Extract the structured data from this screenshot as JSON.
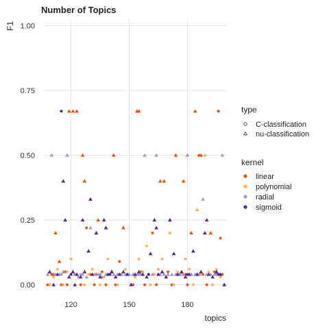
{
  "chart_data": {
    "type": "scatter",
    "title": "Number of Topics",
    "xlabel": "topics",
    "ylabel": "F1",
    "xlim": [
      106,
      200
    ],
    "ylim": [
      -0.025,
      1.025
    ],
    "x_ticks": [
      120,
      150,
      180
    ],
    "y_ticks": [
      0.0,
      0.25,
      0.5,
      0.75,
      1.0
    ],
    "y_tick_labels": [
      "0.00",
      "0.25",
      "0.50",
      "0.75",
      "1.00"
    ],
    "grid": true,
    "legend_position": "right",
    "legend": {
      "shape": {
        "title": "type",
        "entries": [
          {
            "label": "C-classification",
            "marker": "circle"
          },
          {
            "label": "nu-classification",
            "marker": "triangle"
          }
        ]
      },
      "color": {
        "title": "kernel",
        "entries": [
          {
            "label": "linear",
            "color": "#e6550d"
          },
          {
            "label": "polynomial",
            "color": "#fdae6b"
          },
          {
            "label": "radial",
            "color": "#9e9ac8"
          },
          {
            "label": "sigmoid",
            "color": "#54278f"
          }
        ]
      }
    },
    "series": [
      {
        "name": "linear",
        "points": [
          [
            108,
            0.0,
            "c"
          ],
          [
            110,
            0.04,
            "c"
          ],
          [
            112,
            0.2,
            "t"
          ],
          [
            114,
            0.09,
            "t"
          ],
          [
            115,
            0.0,
            "c"
          ],
          [
            117,
            0.05,
            "c"
          ],
          [
            118,
            0.0,
            "c"
          ],
          [
            119,
            0.67,
            "t"
          ],
          [
            121,
            0.67,
            "t"
          ],
          [
            123,
            0.67,
            "t"
          ],
          [
            122,
            0.04,
            "c"
          ],
          [
            125,
            0.0,
            "c"
          ],
          [
            126,
            0.5,
            "t"
          ],
          [
            127,
            0.4,
            "t"
          ],
          [
            128,
            0.22,
            "c"
          ],
          [
            130,
            0.04,
            "c"
          ],
          [
            132,
            0.0,
            "c"
          ],
          [
            134,
            0.25,
            "t"
          ],
          [
            136,
            0.05,
            "c"
          ],
          [
            138,
            0.0,
            "c"
          ],
          [
            140,
            0.04,
            "c"
          ],
          [
            142,
            0.5,
            "t"
          ],
          [
            143,
            0.0,
            "c"
          ],
          [
            145,
            0.09,
            "c"
          ],
          [
            147,
            0.22,
            "t"
          ],
          [
            149,
            0.04,
            "c"
          ],
          [
            152,
            0.0,
            "c"
          ],
          [
            154,
            0.67,
            "t"
          ],
          [
            155,
            0.67,
            "t"
          ],
          [
            156,
            0.05,
            "c"
          ],
          [
            158,
            0.0,
            "c"
          ],
          [
            160,
            0.04,
            "c"
          ],
          [
            162,
            0.2,
            "c"
          ],
          [
            164,
            0.0,
            "c"
          ],
          [
            166,
            0.4,
            "t"
          ],
          [
            168,
            0.4,
            "t"
          ],
          [
            170,
            0.05,
            "c"
          ],
          [
            172,
            0.0,
            "c"
          ],
          [
            174,
            0.5,
            "t"
          ],
          [
            176,
            0.04,
            "c"
          ],
          [
            178,
            0.4,
            "t"
          ],
          [
            180,
            0.0,
            "c"
          ],
          [
            182,
            0.2,
            "t"
          ],
          [
            184,
            0.67,
            "t"
          ],
          [
            186,
            0.5,
            "t"
          ],
          [
            187,
            0.5,
            "t"
          ],
          [
            188,
            0.04,
            "c"
          ],
          [
            190,
            0.0,
            "c"
          ],
          [
            192,
            0.2,
            "t"
          ],
          [
            194,
            0.05,
            "c"
          ],
          [
            196,
            0.67,
            "c"
          ],
          [
            197,
            0.18,
            "c"
          ],
          [
            198,
            0.04,
            "c"
          ],
          [
            111,
            0.04,
            "t"
          ],
          [
            133,
            0.04,
            "t"
          ],
          [
            157,
            0.04,
            "t"
          ],
          [
            179,
            0.04,
            "t"
          ],
          [
            195,
            0.04,
            "t"
          ]
        ]
      },
      {
        "name": "polynomial",
        "points": [
          [
            109,
            0.0,
            "c"
          ],
          [
            111,
            0.03,
            "c"
          ],
          [
            113,
            0.06,
            "c"
          ],
          [
            116,
            0.0,
            "c"
          ],
          [
            118,
            0.05,
            "c"
          ],
          [
            120,
            0.1,
            "c"
          ],
          [
            124,
            0.03,
            "c"
          ],
          [
            127,
            0.0,
            "c"
          ],
          [
            129,
            0.04,
            "c"
          ],
          [
            131,
            0.06,
            "c"
          ],
          [
            135,
            0.0,
            "c"
          ],
          [
            137,
            0.03,
            "c"
          ],
          [
            139,
            0.1,
            "c"
          ],
          [
            141,
            0.05,
            "c"
          ],
          [
            144,
            0.0,
            "c"
          ],
          [
            146,
            0.04,
            "c"
          ],
          [
            148,
            0.06,
            "c"
          ],
          [
            151,
            0.0,
            "c"
          ],
          [
            153,
            0.03,
            "c"
          ],
          [
            155,
            0.1,
            "c"
          ],
          [
            157,
            0.05,
            "c"
          ],
          [
            159,
            0.15,
            "c"
          ],
          [
            161,
            0.0,
            "c"
          ],
          [
            163,
            0.04,
            "c"
          ],
          [
            165,
            0.06,
            "c"
          ],
          [
            167,
            0.1,
            "c"
          ],
          [
            169,
            0.03,
            "c"
          ],
          [
            171,
            0.2,
            "c"
          ],
          [
            173,
            0.0,
            "c"
          ],
          [
            175,
            0.05,
            "c"
          ],
          [
            177,
            0.04,
            "c"
          ],
          [
            179,
            0.1,
            "c"
          ],
          [
            181,
            0.06,
            "c"
          ],
          [
            183,
            0.0,
            "c"
          ],
          [
            185,
            0.29,
            "t"
          ],
          [
            187,
            0.04,
            "c"
          ],
          [
            189,
            0.5,
            "t"
          ],
          [
            191,
            0.05,
            "c"
          ],
          [
            193,
            0.0,
            "c"
          ],
          [
            195,
            0.06,
            "c"
          ],
          [
            197,
            0.03,
            "c"
          ],
          [
            199,
            0.0,
            "c"
          ]
        ]
      },
      {
        "name": "radial",
        "points": [
          [
            108,
            0.04,
            "t"
          ],
          [
            110,
            0.5,
            "t"
          ],
          [
            112,
            0.04,
            "t"
          ],
          [
            114,
            0.04,
            "t"
          ],
          [
            116,
            0.05,
            "t"
          ],
          [
            118,
            0.5,
            "t"
          ],
          [
            120,
            0.04,
            "t"
          ],
          [
            122,
            0.04,
            "t"
          ],
          [
            124,
            0.03,
            "t"
          ],
          [
            126,
            0.04,
            "t"
          ],
          [
            128,
            0.03,
            "t"
          ],
          [
            130,
            0.22,
            "t"
          ],
          [
            132,
            0.04,
            "t"
          ],
          [
            134,
            0.04,
            "t"
          ],
          [
            136,
            0.03,
            "t"
          ],
          [
            138,
            0.04,
            "t"
          ],
          [
            140,
            0.04,
            "t"
          ],
          [
            142,
            0.04,
            "t"
          ],
          [
            144,
            0.04,
            "t"
          ],
          [
            146,
            0.04,
            "t"
          ],
          [
            148,
            0.04,
            "t"
          ],
          [
            150,
            0.04,
            "t"
          ],
          [
            152,
            0.04,
            "t"
          ],
          [
            154,
            0.04,
            "t"
          ],
          [
            156,
            0.04,
            "t"
          ],
          [
            158,
            0.5,
            "t"
          ],
          [
            160,
            0.04,
            "t"
          ],
          [
            162,
            0.04,
            "t"
          ],
          [
            164,
            0.5,
            "t"
          ],
          [
            166,
            0.04,
            "t"
          ],
          [
            168,
            0.04,
            "t"
          ],
          [
            170,
            0.04,
            "t"
          ],
          [
            172,
            0.04,
            "t"
          ],
          [
            174,
            0.04,
            "t"
          ],
          [
            176,
            0.04,
            "t"
          ],
          [
            178,
            0.04,
            "t"
          ],
          [
            180,
            0.5,
            "t"
          ],
          [
            182,
            0.04,
            "t"
          ],
          [
            184,
            0.04,
            "t"
          ],
          [
            186,
            0.04,
            "t"
          ],
          [
            188,
            0.33,
            "t"
          ],
          [
            190,
            0.04,
            "t"
          ],
          [
            192,
            0.04,
            "t"
          ],
          [
            194,
            0.04,
            "t"
          ],
          [
            196,
            0.04,
            "t"
          ],
          [
            198,
            0.5,
            "t"
          ],
          [
            115,
            0.04,
            "c"
          ],
          [
            125,
            0.04,
            "c"
          ],
          [
            135,
            0.04,
            "c"
          ],
          [
            145,
            0.04,
            "c"
          ],
          [
            155,
            0.04,
            "c"
          ],
          [
            165,
            0.04,
            "c"
          ],
          [
            175,
            0.04,
            "c"
          ],
          [
            185,
            0.04,
            "c"
          ],
          [
            195,
            0.04,
            "c"
          ]
        ]
      },
      {
        "name": "sigmoid",
        "points": [
          [
            109,
            0.05,
            "t"
          ],
          [
            111,
            0.0,
            "t"
          ],
          [
            113,
            0.04,
            "t"
          ],
          [
            115,
            0.67,
            "c"
          ],
          [
            116,
            0.4,
            "t"
          ],
          [
            117,
            0.25,
            "t"
          ],
          [
            119,
            0.03,
            "t"
          ],
          [
            121,
            0.05,
            "t"
          ],
          [
            122,
            0.0,
            "t"
          ],
          [
            123,
            0.04,
            "t"
          ],
          [
            125,
            0.03,
            "t"
          ],
          [
            126,
            0.25,
            "t"
          ],
          [
            127,
            0.05,
            "t"
          ],
          [
            129,
            0.13,
            "t"
          ],
          [
            130,
            0.33,
            "t"
          ],
          [
            131,
            0.04,
            "t"
          ],
          [
            133,
            0.2,
            "t"
          ],
          [
            135,
            0.03,
            "t"
          ],
          [
            137,
            0.25,
            "t"
          ],
          [
            138,
            0.22,
            "t"
          ],
          [
            139,
            0.04,
            "t"
          ],
          [
            141,
            0.05,
            "t"
          ],
          [
            143,
            0.03,
            "t"
          ],
          [
            145,
            0.04,
            "t"
          ],
          [
            147,
            0.05,
            "t"
          ],
          [
            149,
            0.04,
            "t"
          ],
          [
            151,
            0.0,
            "t"
          ],
          [
            153,
            0.04,
            "t"
          ],
          [
            155,
            0.05,
            "t"
          ],
          [
            157,
            0.04,
            "t"
          ],
          [
            159,
            0.03,
            "t"
          ],
          [
            161,
            0.12,
            "t"
          ],
          [
            163,
            0.25,
            "t"
          ],
          [
            164,
            0.22,
            "t"
          ],
          [
            165,
            0.04,
            "t"
          ],
          [
            167,
            0.05,
            "t"
          ],
          [
            169,
            0.03,
            "t"
          ],
          [
            171,
            0.25,
            "t"
          ],
          [
            173,
            0.12,
            "t"
          ],
          [
            175,
            0.04,
            "t"
          ],
          [
            177,
            0.05,
            "t"
          ],
          [
            179,
            0.03,
            "t"
          ],
          [
            181,
            0.04,
            "t"
          ],
          [
            183,
            0.13,
            "t"
          ],
          [
            185,
            0.04,
            "t"
          ],
          [
            187,
            0.05,
            "t"
          ],
          [
            189,
            0.2,
            "t"
          ],
          [
            190,
            0.25,
            "t"
          ],
          [
            191,
            0.04,
            "t"
          ],
          [
            193,
            0.03,
            "t"
          ],
          [
            195,
            0.05,
            "t"
          ],
          [
            197,
            0.04,
            "t"
          ],
          [
            199,
            0.0,
            "t"
          ],
          [
            120,
            0.04,
            "c"
          ],
          [
            140,
            0.04,
            "c"
          ],
          [
            160,
            0.04,
            "c"
          ],
          [
            180,
            0.04,
            "c"
          ],
          [
            196,
            0.04,
            "c"
          ]
        ]
      }
    ]
  }
}
